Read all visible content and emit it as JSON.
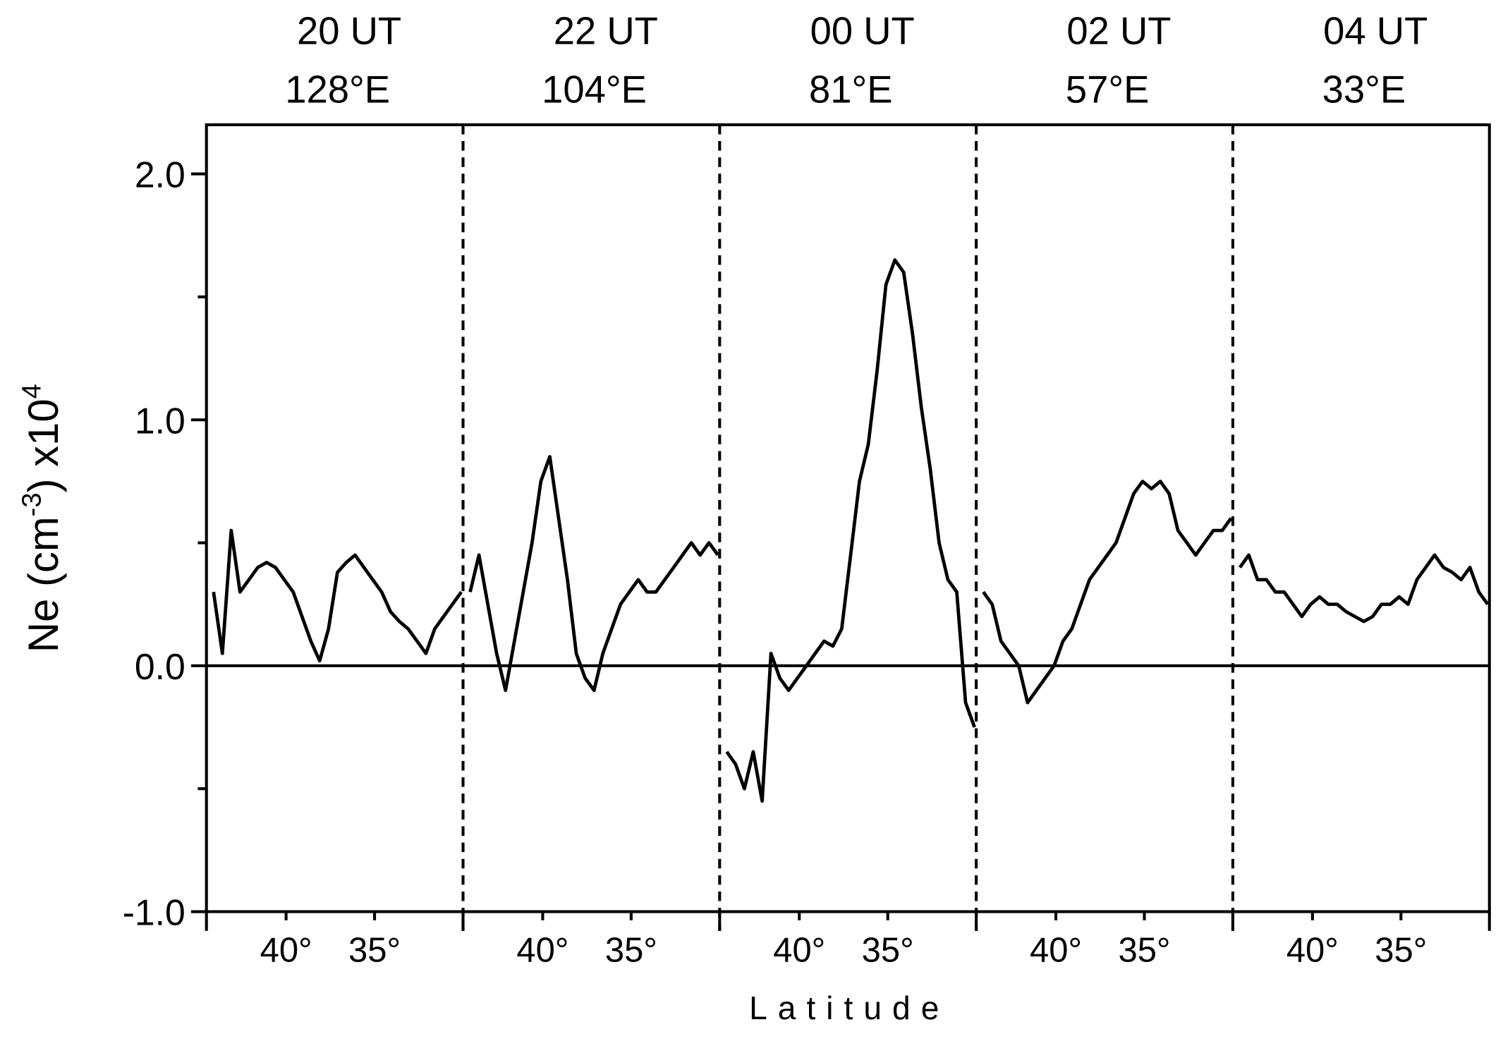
{
  "chart_data": {
    "type": "line",
    "ylabel": [
      "Ne (cm",
      "-3",
      ")  x10",
      "4"
    ],
    "xlabel": "Latitude",
    "ylim": [
      -1.0,
      2.2
    ],
    "yticks": [
      {
        "value": -1.0,
        "label": "-1.0"
      },
      {
        "value": 0.0,
        "label": "0.0"
      },
      {
        "value": 1.0,
        "label": "1.0"
      },
      {
        "value": 2.0,
        "label": "2.0"
      }
    ],
    "yminor_ticks": [
      -0.5,
      0.5,
      1.5
    ],
    "reference_line": 0,
    "color": "#000000",
    "panels": [
      {
        "time": "20 UT",
        "longitude": "128°E",
        "xlim": [
          44.5,
          30
        ],
        "xticks": [
          {
            "value": 40,
            "label": "40°"
          },
          {
            "value": 35,
            "label": "35°"
          }
        ],
        "x": [
          44.1,
          43.6,
          43.1,
          42.6,
          42.1,
          41.6,
          41.1,
          40.6,
          40.1,
          39.6,
          39.1,
          38.6,
          38.1,
          37.6,
          37.1,
          36.6,
          36.1,
          35.6,
          35.1,
          34.6,
          34.1,
          33.6,
          33.1,
          32.6,
          32.1,
          31.6,
          31.1,
          30.6,
          30.1
        ],
        "values": [
          0.3,
          0.05,
          0.55,
          0.3,
          0.35,
          0.4,
          0.42,
          0.4,
          0.35,
          0.3,
          0.2,
          0.1,
          0.02,
          0.15,
          0.38,
          0.42,
          0.45,
          0.4,
          0.35,
          0.3,
          0.22,
          0.18,
          0.15,
          0.1,
          0.05,
          0.15,
          0.2,
          0.25,
          0.3
        ]
      },
      {
        "time": "22 UT",
        "longitude": "104°E",
        "xlim": [
          44.5,
          30
        ],
        "xticks": [
          {
            "value": 40,
            "label": "40°"
          },
          {
            "value": 35,
            "label": "35°"
          }
        ],
        "x": [
          44.1,
          43.6,
          43.1,
          42.6,
          42.1,
          41.6,
          41.1,
          40.6,
          40.1,
          39.6,
          39.1,
          38.6,
          38.1,
          37.6,
          37.1,
          36.6,
          36.1,
          35.6,
          35.1,
          34.6,
          34.1,
          33.6,
          33.1,
          32.6,
          32.1,
          31.6,
          31.1,
          30.6,
          30.1
        ],
        "values": [
          0.3,
          0.45,
          0.25,
          0.05,
          -0.1,
          0.1,
          0.3,
          0.5,
          0.75,
          0.85,
          0.6,
          0.35,
          0.05,
          -0.05,
          -0.1,
          0.05,
          0.15,
          0.25,
          0.3,
          0.35,
          0.3,
          0.3,
          0.35,
          0.4,
          0.45,
          0.5,
          0.45,
          0.5,
          0.45
        ]
      },
      {
        "time": "00 UT",
        "longitude": "81°E",
        "xlim": [
          44.5,
          30
        ],
        "xticks": [
          {
            "value": 40,
            "label": "40°"
          },
          {
            "value": 35,
            "label": "35°"
          }
        ],
        "x": [
          44.1,
          43.6,
          43.1,
          42.6,
          42.1,
          41.6,
          41.1,
          40.6,
          40.1,
          39.6,
          39.1,
          38.6,
          38.1,
          37.6,
          37.1,
          36.6,
          36.1,
          35.6,
          35.1,
          34.6,
          34.1,
          33.6,
          33.1,
          32.6,
          32.1,
          31.6,
          31.1,
          30.6,
          30.1
        ],
        "values": [
          -0.35,
          -0.4,
          -0.5,
          -0.35,
          -0.55,
          0.05,
          -0.05,
          -0.1,
          -0.05,
          0.0,
          0.05,
          0.1,
          0.08,
          0.15,
          0.45,
          0.75,
          0.9,
          1.2,
          1.55,
          1.65,
          1.6,
          1.35,
          1.05,
          0.8,
          0.5,
          0.35,
          0.3,
          -0.15,
          -0.25
        ]
      },
      {
        "time": "02 UT",
        "longitude": "57°E",
        "xlim": [
          44.5,
          30
        ],
        "xticks": [
          {
            "value": 40,
            "label": "40°"
          },
          {
            "value": 35,
            "label": "35°"
          }
        ],
        "x": [
          44.1,
          43.6,
          43.1,
          42.6,
          42.1,
          41.6,
          41.1,
          40.6,
          40.1,
          39.6,
          39.1,
          38.6,
          38.1,
          37.6,
          37.1,
          36.6,
          36.1,
          35.6,
          35.1,
          34.6,
          34.1,
          33.6,
          33.1,
          32.6,
          32.1,
          31.6,
          31.1,
          30.6,
          30.1
        ],
        "values": [
          0.3,
          0.25,
          0.1,
          0.05,
          0.0,
          -0.15,
          -0.1,
          -0.05,
          0.0,
          0.1,
          0.15,
          0.25,
          0.35,
          0.4,
          0.45,
          0.5,
          0.6,
          0.7,
          0.75,
          0.72,
          0.75,
          0.7,
          0.55,
          0.5,
          0.45,
          0.5,
          0.55,
          0.55,
          0.6
        ]
      },
      {
        "time": "04 UT",
        "longitude": "33°E",
        "xlim": [
          44.5,
          30
        ],
        "xticks": [
          {
            "value": 40,
            "label": "40°"
          },
          {
            "value": 35,
            "label": "35°"
          }
        ],
        "x": [
          44.1,
          43.6,
          43.1,
          42.6,
          42.1,
          41.6,
          41.1,
          40.6,
          40.1,
          39.6,
          39.1,
          38.6,
          38.1,
          37.6,
          37.1,
          36.6,
          36.1,
          35.6,
          35.1,
          34.6,
          34.1,
          33.6,
          33.1,
          32.6,
          32.1,
          31.6,
          31.1,
          30.6,
          30.1
        ],
        "values": [
          0.4,
          0.45,
          0.35,
          0.35,
          0.3,
          0.3,
          0.25,
          0.2,
          0.25,
          0.28,
          0.25,
          0.25,
          0.22,
          0.2,
          0.18,
          0.2,
          0.25,
          0.25,
          0.28,
          0.25,
          0.35,
          0.4,
          0.45,
          0.4,
          0.38,
          0.35,
          0.4,
          0.3,
          0.25
        ]
      }
    ]
  }
}
